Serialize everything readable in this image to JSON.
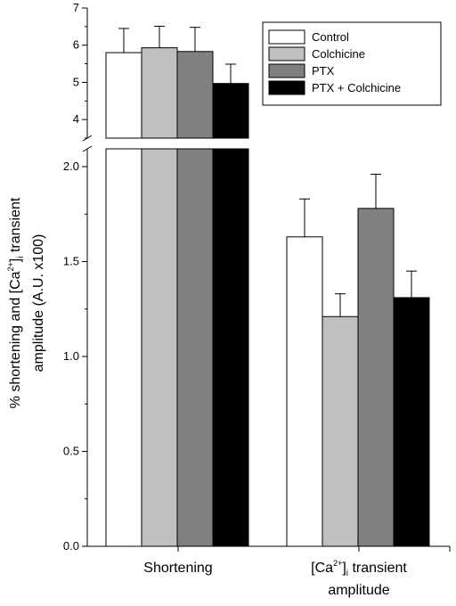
{
  "chart_data": {
    "type": "bar",
    "categories": [
      "Shortening",
      "[Ca2+]i transient amplitude"
    ],
    "series": [
      {
        "name": "Control",
        "color": "#ffffff",
        "values": [
          5.8,
          1.63
        ],
        "errors": [
          0.65,
          0.2
        ]
      },
      {
        "name": "Colchicine",
        "color": "#c0c0c0",
        "values": [
          5.93,
          1.21
        ],
        "errors": [
          0.58,
          0.12
        ]
      },
      {
        "name": "PTX",
        "color": "#808080",
        "values": [
          5.83,
          1.78
        ],
        "errors": [
          0.65,
          0.18
        ]
      },
      {
        "name": "PTX + Colchicine",
        "color": "#000000",
        "values": [
          4.97,
          1.31
        ],
        "errors": [
          0.52,
          0.14
        ]
      }
    ],
    "y_axis": {
      "label_prefix": "% shortening and [Ca",
      "label_sup": "2+",
      "label_mid": "]",
      "label_sub": "i",
      "label_suffix": " transient",
      "label_line2": "amplitude (A.U. x100)",
      "break": true,
      "lower_range": [
        0,
        2.0
      ],
      "upper_range": [
        3.5,
        7
      ],
      "lower_ticks": [
        "0.0",
        "0.5",
        "1.0",
        "1.5",
        "2.0"
      ],
      "upper_ticks": [
        "4",
        "5",
        "6",
        "7"
      ]
    },
    "category_labels": {
      "shortening": "Shortening",
      "ca_prefix": "[Ca",
      "ca_sup": "2+",
      "ca_mid": "]",
      "ca_sub": "i",
      "ca_suffix": " transient",
      "ca_line2": "amplitude"
    },
    "legend_position": "top-right",
    "grid": false
  }
}
